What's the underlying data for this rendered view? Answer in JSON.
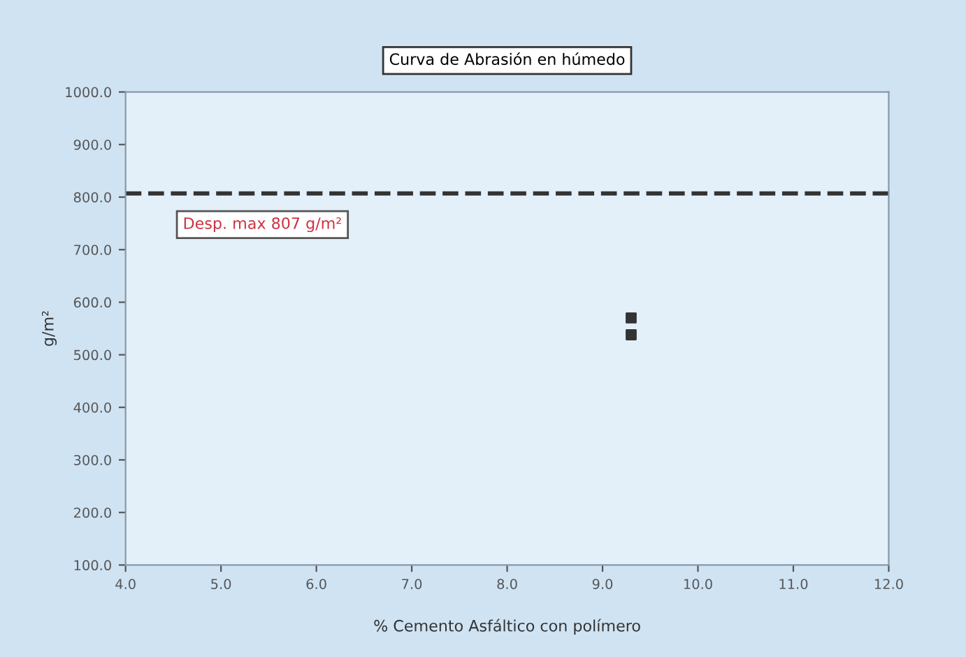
{
  "chart_data": {
    "type": "scatter",
    "title": "Curva de Abrasión en húmedo",
    "xlabel": "% Cemento Asfáltico con polímero",
    "ylabel": "g/m²",
    "x": [
      9.3,
      9.3
    ],
    "series": [
      {
        "color": "#333333",
        "values": [
          570,
          538
        ]
      }
    ],
    "marker": "square",
    "xlim": [
      4.0,
      12.0
    ],
    "xticks": [
      {
        "value": 4,
        "label": "4.0"
      },
      {
        "value": 5,
        "label": "5.0"
      },
      {
        "value": 6,
        "label": "6.0"
      },
      {
        "value": 7,
        "label": "7.0"
      },
      {
        "value": 8,
        "label": "8.0"
      },
      {
        "value": 9,
        "label": "9.0"
      },
      {
        "value": 10,
        "label": "10.0"
      },
      {
        "value": 11,
        "label": "11.0"
      },
      {
        "value": 12,
        "label": "12.0"
      }
    ],
    "ylim": [
      100,
      1000
    ],
    "yticks": [
      {
        "value": 100,
        "label": "100.0"
      },
      {
        "value": 200,
        "label": "200.0"
      },
      {
        "value": 300,
        "label": "300.0"
      },
      {
        "value": 400,
        "label": "400.0"
      },
      {
        "value": 500,
        "label": "500.0"
      },
      {
        "value": 600,
        "label": "600.0"
      },
      {
        "value": 700,
        "label": "700.0"
      },
      {
        "value": 800,
        "label": "800.0"
      },
      {
        "value": 900,
        "label": "900.0"
      },
      {
        "value": 1000,
        "label": "1000.0"
      }
    ],
    "ref_lines": [
      {
        "axis": "y",
        "value": 807,
        "label": "Desp. max 807 g/m²",
        "color": "#333333",
        "line_style": "dashed"
      }
    ],
    "grid": false,
    "legend": false
  }
}
